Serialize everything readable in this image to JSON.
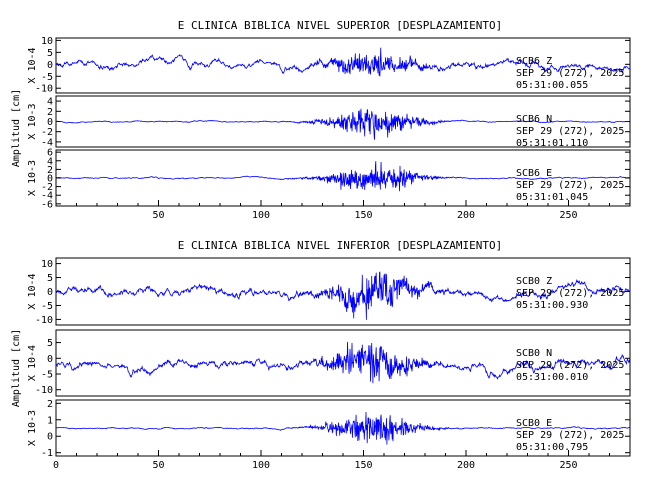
{
  "chart_data": [
    {
      "type": "line",
      "title": "E CLINICA BIBLICA NIVEL SUPERIOR [DESPLAZAMIENTO]",
      "ylabel": "Amplitud [cm]",
      "x_ticks": [
        "50",
        "100",
        "150",
        "200",
        "250"
      ],
      "x_range": [
        0,
        280
      ],
      "grid": false,
      "series": [
        {
          "channel": "SCB6  Z",
          "date": "SEP 29 (272), 2025",
          "time": "05:31:00.055",
          "scale_label": "X 10-4",
          "y_ticks": [
            "10",
            "5",
            "0",
            "-5",
            "-10"
          ],
          "y_range": [
            -12,
            11
          ],
          "color": "#0000ff"
        },
        {
          "channel": "SCB6  N",
          "date": "SEP 29 (272), 2025",
          "time": "05:31:01.110",
          "scale_label": "X 10-3",
          "y_ticks": [
            "4",
            "2",
            "0",
            "-2",
            "-4"
          ],
          "y_range": [
            -5,
            5
          ],
          "color": "#0000ff"
        },
        {
          "channel": "SCB6  E",
          "date": "SEP 29 (272), 2025",
          "time": "05:31:01.045",
          "scale_label": "X 10-3",
          "y_ticks": [
            "6",
            "4",
            "2",
            "0",
            "-2",
            "-4",
            "-6"
          ],
          "y_range": [
            -6.5,
            6.5
          ],
          "color": "#0000ff"
        }
      ]
    },
    {
      "type": "line",
      "title": "E CLINICA BIBLICA NIVEL INFERIOR [DESPLAZAMIENTO]",
      "ylabel": "Amplitud [cm]",
      "x_ticks": [
        "0",
        "50",
        "100",
        "150",
        "200",
        "250"
      ],
      "x_range": [
        0,
        280
      ],
      "grid": false,
      "series": [
        {
          "channel": "SCB0  Z",
          "date": "SEP 29 (272), 2025",
          "time": "05:31:00.930",
          "scale_label": "X 10-4",
          "y_ticks": [
            "10",
            "5",
            "0",
            "-5",
            "-10"
          ],
          "y_range": [
            -12,
            12
          ],
          "color": "#0000ff"
        },
        {
          "channel": "SCB0  N",
          "date": "SEP 29 (272), 2025",
          "time": "05:31:00.010",
          "scale_label": "X 10-4",
          "y_ticks": [
            "5",
            "0",
            "-5",
            "-10"
          ],
          "y_range": [
            -12,
            9
          ],
          "color": "#0000ff"
        },
        {
          "channel": "SCB0  E",
          "date": "SEP 29 (272), 2025",
          "time": "05:31:00.795",
          "scale_label": "X 10-3",
          "y_ticks": [
            "2",
            "1",
            "0",
            "-1"
          ],
          "y_range": [
            -1.2,
            2.2
          ],
          "color": "#0000ff"
        }
      ]
    }
  ]
}
